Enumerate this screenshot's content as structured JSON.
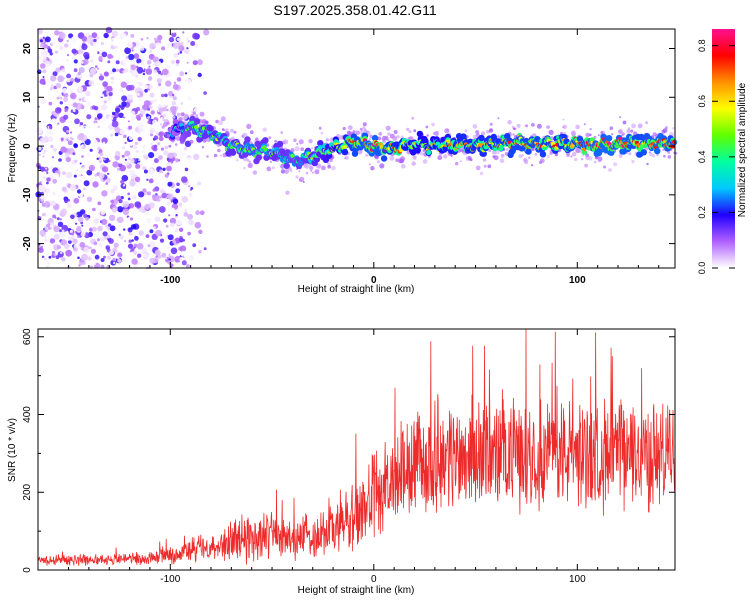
{
  "title": "S197.2025.358.01.42.G11",
  "chart_data": [
    {
      "type": "heatmap",
      "title": "S197.2025.358.01.42.G11",
      "xlabel": "Height of straight line (km)",
      "ylabel": "Frequency (Hz)",
      "xlim": [
        -165,
        148
      ],
      "ylim": [
        -25,
        24
      ],
      "xticks": [
        -100,
        0,
        100
      ],
      "yticks": [
        -20,
        -10,
        0,
        10,
        20
      ],
      "colorbar": {
        "label": "Normalized spectral amplitude",
        "range": [
          0,
          0.86
        ],
        "ticks": [
          0.0,
          0.2,
          0.4,
          0.6,
          0.8
        ],
        "colors": [
          "#ffffff",
          "#b060ff",
          "#2000ff",
          "#00c8ff",
          "#00ffa0",
          "#60ff00",
          "#ffff00",
          "#ff9000",
          "#ff0000",
          "#ff1090"
        ]
      },
      "noise_region": {
        "x_from": -165,
        "x_to": -90,
        "note": "scattered low-amplitude noise spanning full frequency range"
      },
      "signal_track": {
        "x": [
          -100,
          -90,
          -80,
          -70,
          -60,
          -50,
          -40,
          -30,
          -20,
          -10,
          0,
          10,
          20,
          30,
          40,
          50,
          60,
          70,
          80,
          90,
          100,
          110,
          120,
          130,
          140,
          148
        ],
        "frequency": [
          3,
          4,
          2.5,
          0,
          -1,
          -1,
          -3,
          -2,
          -0.5,
          1,
          0,
          -0.5,
          0.5,
          0,
          0.3,
          0,
          0.5,
          0.8,
          0.3,
          0.5,
          0.4,
          0.3,
          0.6,
          0.5,
          0.4,
          0.5
        ],
        "amplitude": [
          0.3,
          0.45,
          0.5,
          0.5,
          0.45,
          0.5,
          0.45,
          0.5,
          0.6,
          0.75,
          0.8,
          0.7,
          0.65,
          0.65,
          0.7,
          0.7,
          0.7,
          0.75,
          0.75,
          0.7,
          0.75,
          0.8,
          0.8,
          0.75,
          0.8,
          0.75
        ]
      }
    },
    {
      "type": "line",
      "xlabel": "Height of straight line (km)",
      "ylabel": "SNR (10 * v/v)",
      "xlim": [
        -165,
        148
      ],
      "ylim": [
        0,
        620
      ],
      "xticks": [
        -100,
        0,
        100
      ],
      "yticks": [
        0,
        200,
        400,
        600
      ],
      "series": [
        {
          "name": "SNR",
          "color": "#ee2b2b",
          "envelope_x": [
            -165,
            -130,
            -110,
            -95,
            -80,
            -70,
            -60,
            -50,
            -40,
            -30,
            -20,
            -10,
            0,
            10,
            20,
            30,
            40,
            50,
            60,
            70,
            80,
            90,
            100,
            110,
            120,
            130,
            140,
            148
          ],
          "mean": [
            25,
            28,
            30,
            45,
            60,
            75,
            85,
            90,
            80,
            90,
            110,
            130,
            190,
            230,
            270,
            285,
            295,
            300,
            295,
            300,
            305,
            300,
            300,
            295,
            300,
            300,
            290,
            300
          ],
          "spread": [
            15,
            15,
            18,
            30,
            45,
            60,
            70,
            65,
            55,
            65,
            80,
            100,
            120,
            130,
            140,
            150,
            150,
            150,
            150,
            150,
            150,
            150,
            150,
            150,
            150,
            150,
            150,
            150
          ]
        }
      ]
    }
  ]
}
